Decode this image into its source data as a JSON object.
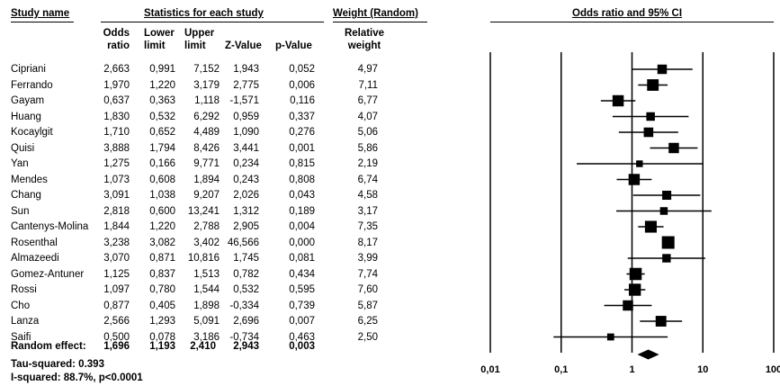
{
  "headers": {
    "study": "Study name",
    "stats": "Statistics for each study",
    "weight": "Weight (Random)",
    "plot": "Odds ratio and 95% CI",
    "col_or": [
      "Odds",
      "ratio"
    ],
    "col_lower": [
      "Lower",
      "limit"
    ],
    "col_upper": [
      "Upper",
      "limit"
    ],
    "col_z": "Z-Value",
    "col_p": "p-Value",
    "col_w": [
      "Relative",
      "weight"
    ]
  },
  "rows": [
    {
      "name": "Cipriani",
      "or": "2,663",
      "lower": "0,991",
      "upper": "7,152",
      "z": "1,943",
      "p": "0,052",
      "w": "4,97"
    },
    {
      "name": "Ferrando",
      "or": "1,970",
      "lower": "1,220",
      "upper": "3,179",
      "z": "2,775",
      "p": "0,006",
      "w": "7,11"
    },
    {
      "name": "Gayam",
      "or": "0,637",
      "lower": "0,363",
      "upper": "1,118",
      "z": "-1,571",
      "p": "0,116",
      "w": "6,77"
    },
    {
      "name": "Huang",
      "or": "1,830",
      "lower": "0,532",
      "upper": "6,292",
      "z": "0,959",
      "p": "0,337",
      "w": "4,07"
    },
    {
      "name": "Kocaylgit",
      "or": "1,710",
      "lower": "0,652",
      "upper": "4,489",
      "z": "1,090",
      "p": "0,276",
      "w": "5,06"
    },
    {
      "name": "Quisi",
      "or": "3,888",
      "lower": "1,794",
      "upper": "8,426",
      "z": "3,441",
      "p": "0,001",
      "w": "5,86"
    },
    {
      "name": "Yan",
      "or": "1,275",
      "lower": "0,166",
      "upper": "9,771",
      "z": "0,234",
      "p": "0,815",
      "w": "2,19"
    },
    {
      "name": "Mendes",
      "or": "1,073",
      "lower": "0,608",
      "upper": "1,894",
      "z": "0,243",
      "p": "0,808",
      "w": "6,74"
    },
    {
      "name": "Chang",
      "or": "3,091",
      "lower": "1,038",
      "upper": "9,207",
      "z": "2,026",
      "p": "0,043",
      "w": "4,58"
    },
    {
      "name": "Sun",
      "or": "2,818",
      "lower": "0,600",
      "upper": "13,241",
      "z": "1,312",
      "p": "0,189",
      "w": "3,17"
    },
    {
      "name": "Cantenys-Molina",
      "or": "1,844",
      "lower": "1,220",
      "upper": "2,788",
      "z": "2,905",
      "p": "0,004",
      "w": "7,35"
    },
    {
      "name": "Rosenthal",
      "or": "3,238",
      "lower": "3,082",
      "upper": "3,402",
      "z": "46,566",
      "p": "0,000",
      "w": "8,17"
    },
    {
      "name": "Almazeedi",
      "or": "3,070",
      "lower": "0,871",
      "upper": "10,816",
      "z": "1,745",
      "p": "0,081",
      "w": "3,99"
    },
    {
      "name": "Gomez-Antuner",
      "or": "1,125",
      "lower": "0,837",
      "upper": "1,513",
      "z": "0,782",
      "p": "0,434",
      "w": "7,74"
    },
    {
      "name": "Rossi",
      "or": "1,097",
      "lower": "0,780",
      "upper": "1,544",
      "z": "0,532",
      "p": "0,595",
      "w": "7,60"
    },
    {
      "name": "Cho",
      "or": "0,877",
      "lower": "0,405",
      "upper": "1,898",
      "z": "-0,334",
      "p": "0,739",
      "w": "5,87"
    },
    {
      "name": "Lanza",
      "or": "2,566",
      "lower": "1,293",
      "upper": "5,091",
      "z": "2,696",
      "p": "0,007",
      "w": "6,25"
    },
    {
      "name": "Saifi",
      "or": "0,500",
      "or_num": 0.5,
      "lower": "0,078",
      "upper": "3,186",
      "z": "-0,734",
      "p": "0,463",
      "w": "2,50"
    }
  ],
  "summary": {
    "name": "Random effect:",
    "or": "1,696",
    "lower": "1,193",
    "upper": "2,410",
    "z": "2,943",
    "p": "0,003"
  },
  "footer": {
    "tau": "Tau-squared: 0.393",
    "i2": "I-squared: 88.7%, p<0.0001"
  },
  "chart_data": {
    "type": "forest",
    "scale": "log",
    "xlim": [
      0.01,
      100
    ],
    "ticks": [
      {
        "value": 0.01,
        "label": "0,01"
      },
      {
        "value": 0.1,
        "label": "0,1"
      },
      {
        "value": 1,
        "label": "1"
      },
      {
        "value": 10,
        "label": "10"
      },
      {
        "value": 100,
        "label": "100"
      }
    ],
    "studies": [
      {
        "name": "Cipriani",
        "or": 2.663,
        "lower": 0.991,
        "upper": 7.152,
        "weight": 4.97
      },
      {
        "name": "Ferrando",
        "or": 1.97,
        "lower": 1.22,
        "upper": 3.179,
        "weight": 7.11
      },
      {
        "name": "Gayam",
        "or": 0.637,
        "lower": 0.363,
        "upper": 1.118,
        "weight": 6.77
      },
      {
        "name": "Huang",
        "or": 1.83,
        "lower": 0.532,
        "upper": 6.292,
        "weight": 4.07
      },
      {
        "name": "Kocaylgit",
        "or": 1.71,
        "lower": 0.652,
        "upper": 4.489,
        "weight": 5.06
      },
      {
        "name": "Quisi",
        "or": 3.888,
        "lower": 1.794,
        "upper": 8.426,
        "weight": 5.86
      },
      {
        "name": "Yan",
        "or": 1.275,
        "lower": 0.166,
        "upper": 9.771,
        "weight": 2.19
      },
      {
        "name": "Mendes",
        "or": 1.073,
        "lower": 0.608,
        "upper": 1.894,
        "weight": 6.74
      },
      {
        "name": "Chang",
        "or": 3.091,
        "lower": 1.038,
        "upper": 9.207,
        "weight": 4.58
      },
      {
        "name": "Sun",
        "or": 2.818,
        "lower": 0.6,
        "upper": 13.241,
        "weight": 3.17
      },
      {
        "name": "Cantenys-Molina",
        "or": 1.844,
        "lower": 1.22,
        "upper": 2.788,
        "weight": 7.35
      },
      {
        "name": "Rosenthal",
        "or": 3.238,
        "lower": 3.082,
        "upper": 3.402,
        "weight": 8.17
      },
      {
        "name": "Almazeedi",
        "or": 3.07,
        "lower": 0.871,
        "upper": 10.816,
        "weight": 3.99
      },
      {
        "name": "Gomez-Antuner",
        "or": 1.125,
        "lower": 0.837,
        "upper": 1.513,
        "weight": 7.74
      },
      {
        "name": "Rossi",
        "or": 1.097,
        "lower": 0.78,
        "upper": 1.544,
        "weight": 7.6
      },
      {
        "name": "Cho",
        "or": 0.877,
        "lower": 0.405,
        "upper": 1.898,
        "weight": 5.87
      },
      {
        "name": "Lanza",
        "or": 2.566,
        "lower": 1.293,
        "upper": 5.091,
        "weight": 6.25
      },
      {
        "name": "Saifi",
        "or": 0.5,
        "lower": 0.078,
        "upper": 3.186,
        "weight": 2.5
      }
    ],
    "summary": {
      "name": "Random effect",
      "or": 1.696,
      "lower": 1.193,
      "upper": 2.41
    }
  }
}
